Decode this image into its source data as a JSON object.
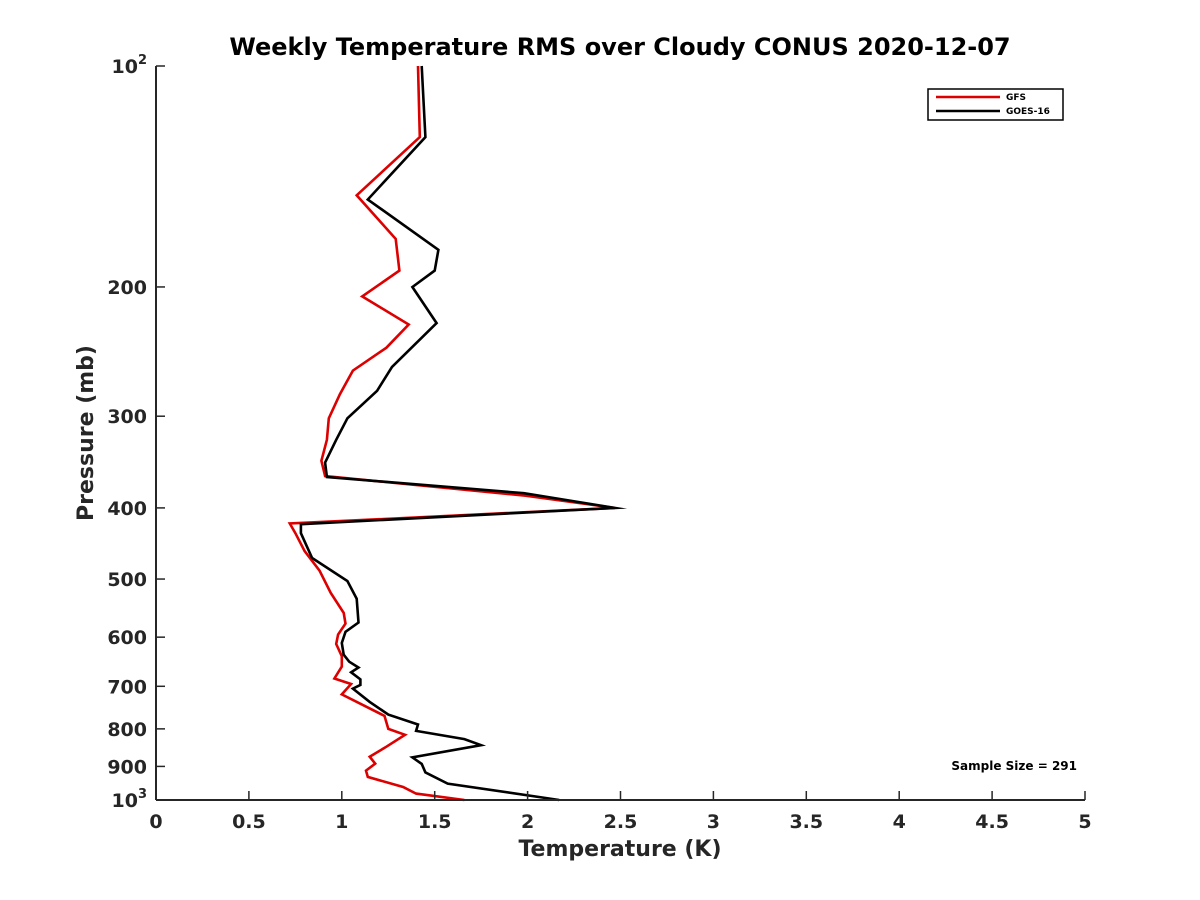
{
  "chart_data": {
    "type": "line",
    "title": "Weekly Temperature RMS over Cloudy CONUS 2020-12-07",
    "xlabel": "Temperature (K)",
    "ylabel": "Pressure (mb)",
    "xlim": [
      0,
      5
    ],
    "ylim": [
      100,
      1000
    ],
    "y_scale": "log",
    "y_reversed": true,
    "x_ticks": [
      "0",
      "0.5",
      "1",
      "1.5",
      "2",
      "2.5",
      "3",
      "3.5",
      "4",
      "4.5",
      "5"
    ],
    "x_tick_values": [
      0,
      0.5,
      1,
      1.5,
      2,
      2.5,
      3,
      3.5,
      4,
      4.5,
      5
    ],
    "y_ticks": [
      {
        "value": 100,
        "base": "10",
        "exp": "2"
      },
      {
        "value": 200,
        "label": "200"
      },
      {
        "value": 300,
        "label": "300"
      },
      {
        "value": 400,
        "label": "400"
      },
      {
        "value": 500,
        "label": "500"
      },
      {
        "value": 600,
        "label": "600"
      },
      {
        "value": 700,
        "label": "700"
      },
      {
        "value": 800,
        "label": "800"
      },
      {
        "value": 900,
        "label": "900"
      },
      {
        "value": 1000,
        "base": "10",
        "exp": "3"
      }
    ],
    "grid": false,
    "legend_position": "top-right",
    "series": [
      {
        "name": "GFS",
        "color": "#dd0000",
        "points": [
          [
            1.41,
            100
          ],
          [
            1.42,
            125
          ],
          [
            1.08,
            150
          ],
          [
            1.29,
            172
          ],
          [
            1.31,
            190
          ],
          [
            1.11,
            206
          ],
          [
            1.36,
            225
          ],
          [
            1.24,
            242
          ],
          [
            1.06,
            260
          ],
          [
            0.99,
            280
          ],
          [
            0.93,
            302
          ],
          [
            0.92,
            323
          ],
          [
            0.89,
            345
          ],
          [
            0.91,
            362
          ],
          [
            1.99,
            385
          ],
          [
            2.47,
            400
          ],
          [
            0.72,
            420
          ],
          [
            0.75,
            433
          ],
          [
            0.8,
            458
          ],
          [
            0.88,
            487
          ],
          [
            0.94,
            522
          ],
          [
            1.01,
            556
          ],
          [
            1.02,
            575
          ],
          [
            0.98,
            595
          ],
          [
            0.97,
            613
          ],
          [
            1.0,
            637
          ],
          [
            1.0,
            658
          ],
          [
            0.96,
            683
          ],
          [
            1.05,
            695
          ],
          [
            1.0,
            718
          ],
          [
            1.23,
            768
          ],
          [
            1.25,
            800
          ],
          [
            1.34,
            815
          ],
          [
            1.24,
            846
          ],
          [
            1.15,
            873
          ],
          [
            1.18,
            892
          ],
          [
            1.13,
            912
          ],
          [
            1.14,
            930
          ],
          [
            1.33,
            960
          ],
          [
            1.4,
            980
          ],
          [
            1.66,
            1000
          ]
        ]
      },
      {
        "name": "GOES-16",
        "color": "#000000",
        "points": [
          [
            1.43,
            100
          ],
          [
            1.45,
            125
          ],
          [
            1.14,
            152
          ],
          [
            1.52,
            178
          ],
          [
            1.5,
            190
          ],
          [
            1.38,
            200
          ],
          [
            1.51,
            224
          ],
          [
            1.27,
            257
          ],
          [
            1.19,
            277
          ],
          [
            1.03,
            302
          ],
          [
            0.97,
            323
          ],
          [
            0.91,
            347
          ],
          [
            0.92,
            363
          ],
          [
            1.98,
            382
          ],
          [
            2.47,
            400
          ],
          [
            0.78,
            421
          ],
          [
            0.78,
            433
          ],
          [
            0.84,
            468
          ],
          [
            1.03,
            503
          ],
          [
            1.08,
            532
          ],
          [
            1.09,
            573
          ],
          [
            1.02,
            590
          ],
          [
            1.0,
            611
          ],
          [
            1.01,
            634
          ],
          [
            1.04,
            648
          ],
          [
            1.09,
            660
          ],
          [
            1.05,
            670
          ],
          [
            1.1,
            685
          ],
          [
            1.1,
            697
          ],
          [
            1.06,
            705
          ],
          [
            1.15,
            735
          ],
          [
            1.25,
            765
          ],
          [
            1.41,
            789
          ],
          [
            1.4,
            805
          ],
          [
            1.66,
            826
          ],
          [
            1.75,
            842
          ],
          [
            1.38,
            875
          ],
          [
            1.43,
            893
          ],
          [
            1.45,
            917
          ],
          [
            1.57,
            950
          ],
          [
            2.17,
            1000
          ]
        ]
      }
    ],
    "legend": [
      "GFS",
      "GOES-16"
    ],
    "annotations": [
      {
        "text": "Sample Size = 291",
        "position": "bottom-right"
      }
    ]
  }
}
